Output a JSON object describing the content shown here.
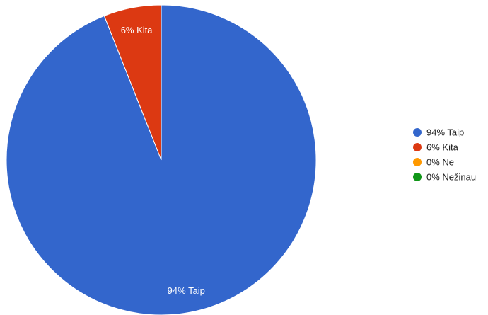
{
  "chart_data": {
    "type": "pie",
    "slices": [
      {
        "label": "94% Taip",
        "value": 94,
        "color": "#3366cc",
        "data_label": "94% Taip"
      },
      {
        "label": "6% Kita",
        "value": 6,
        "color": "#dc3912",
        "data_label": "6% Kita"
      },
      {
        "label": "0% Ne",
        "value": 0,
        "color": "#ff9900",
        "data_label": ""
      },
      {
        "label": "0% Nežinau",
        "value": 0,
        "color": "#109618",
        "data_label": ""
      }
    ],
    "legend_position": "right",
    "start_angle_deg": 0,
    "direction": "clockwise"
  }
}
